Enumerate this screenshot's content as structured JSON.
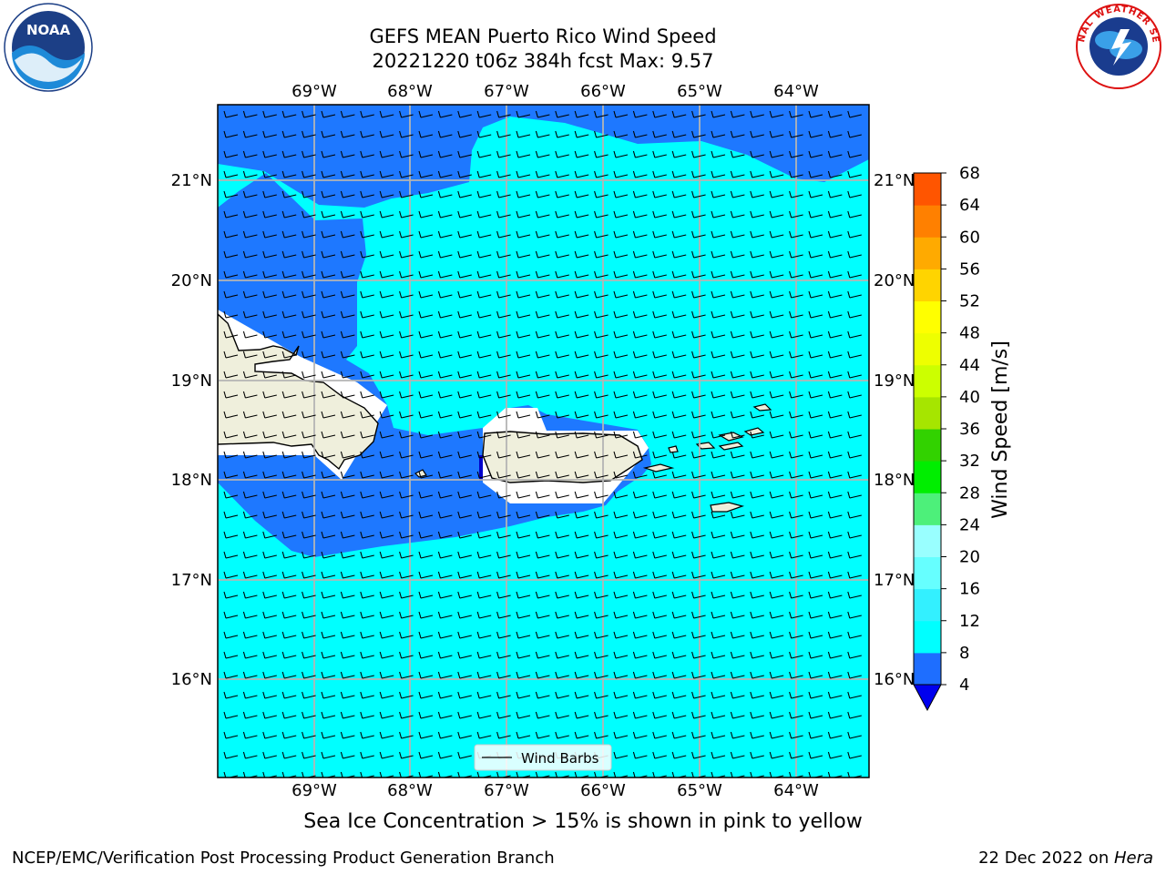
{
  "title_line1": "GEFS MEAN Puerto Rico Wind Speed",
  "title_line2": "20221220 t06z 384h fcst   Max: 9.57",
  "sea_ice_note": "Sea Ice Concentration > 15% is shown in pink to yellow",
  "footer_left": "NCEP/EMC/Verification Post Processing Product Generation Branch",
  "footer_date": "22 Dec 2022 on ",
  "footer_host": "Hera",
  "legend_label": "Wind Barbs",
  "colorbar_label": "Wind Speed [m/s]",
  "colorbar_ticks": [
    "4",
    "8",
    "12",
    "16",
    "20",
    "24",
    "28",
    "32",
    "36",
    "40",
    "44",
    "48",
    "52",
    "56",
    "60",
    "64",
    "68"
  ],
  "colorbar_colors": [
    "#1e6eff",
    "#00ffff",
    "#33f0ff",
    "#66ffff",
    "#99ffff",
    "#4df07a",
    "#00ee00",
    "#32d200",
    "#a6e500",
    "#ccff00",
    "#eeff00",
    "#ffff00",
    "#ffd400",
    "#ffaa00",
    "#ff8000",
    "#ff5500",
    "#ff2a00",
    "#ff0000"
  ],
  "colorbar_under_color": "#0000ee",
  "lon_labels": [
    "69°W",
    "68°W",
    "67°W",
    "66°W",
    "65°W",
    "64°W"
  ],
  "lat_labels": [
    "21°N",
    "20°N",
    "19°N",
    "18°N",
    "17°N",
    "16°N"
  ],
  "logos": {
    "left": "noaa-logo",
    "left_text": "NOAA",
    "right": "nws-logo",
    "right_text": "NATIONAL WEATHER SERVICE"
  },
  "colors": {
    "water_light": "#00ffff",
    "water_dark": "#1e78ff",
    "land": "#efefdc",
    "grid": "#b4b4b4"
  }
}
